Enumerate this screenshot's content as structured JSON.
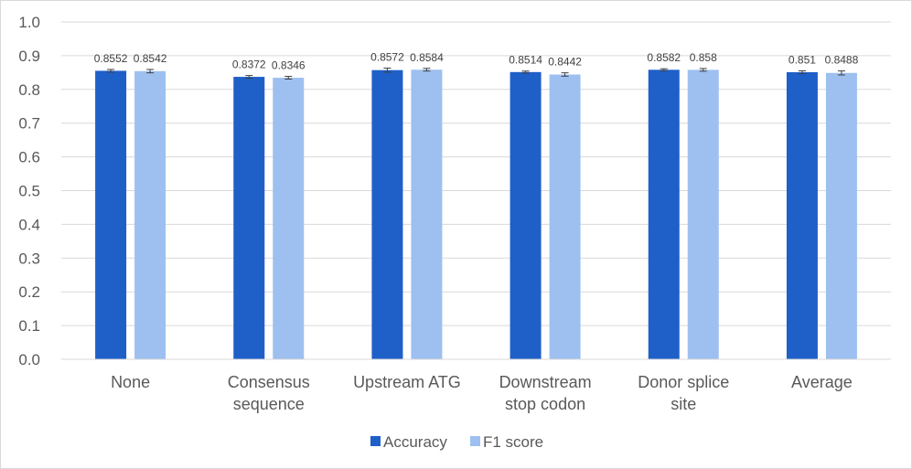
{
  "chart_data": {
    "type": "bar",
    "categories": [
      [
        "None"
      ],
      [
        "Consensus",
        "sequence"
      ],
      [
        "Upstream ATG"
      ],
      [
        "Downstream",
        "stop codon"
      ],
      [
        "Donor splice",
        "site"
      ],
      [
        "Average"
      ]
    ],
    "series": [
      {
        "name": "Accuracy",
        "color": "#1f5fc8",
        "values": [
          0.8552,
          0.8372,
          0.8572,
          0.8514,
          0.8582,
          0.851
        ],
        "labels": [
          "0.8552",
          "0.8372",
          "0.8572",
          "0.8514",
          "0.8582",
          "0.851"
        ],
        "errors": [
          0.004,
          0.004,
          0.006,
          0.003,
          0.003,
          0.004
        ]
      },
      {
        "name": "F1 score",
        "color": "#9dc0f0",
        "values": [
          0.8542,
          0.8346,
          0.8584,
          0.8442,
          0.858,
          0.8488
        ],
        "labels": [
          "0.8542",
          "0.8346",
          "0.8584",
          "0.8442",
          "0.858",
          "0.8488"
        ],
        "errors": [
          0.005,
          0.004,
          0.004,
          0.005,
          0.004,
          0.006
        ]
      }
    ],
    "y_ticks": [
      "0.0",
      "0.1",
      "0.2",
      "0.3",
      "0.4",
      "0.5",
      "0.6",
      "0.7",
      "0.8",
      "0.9",
      "1.0"
    ],
    "ylim": [
      0,
      1.0
    ],
    "grid": true,
    "legend": "bottom",
    "gridline_color": "#d9d9d9",
    "errorbar_color": "#404040"
  }
}
